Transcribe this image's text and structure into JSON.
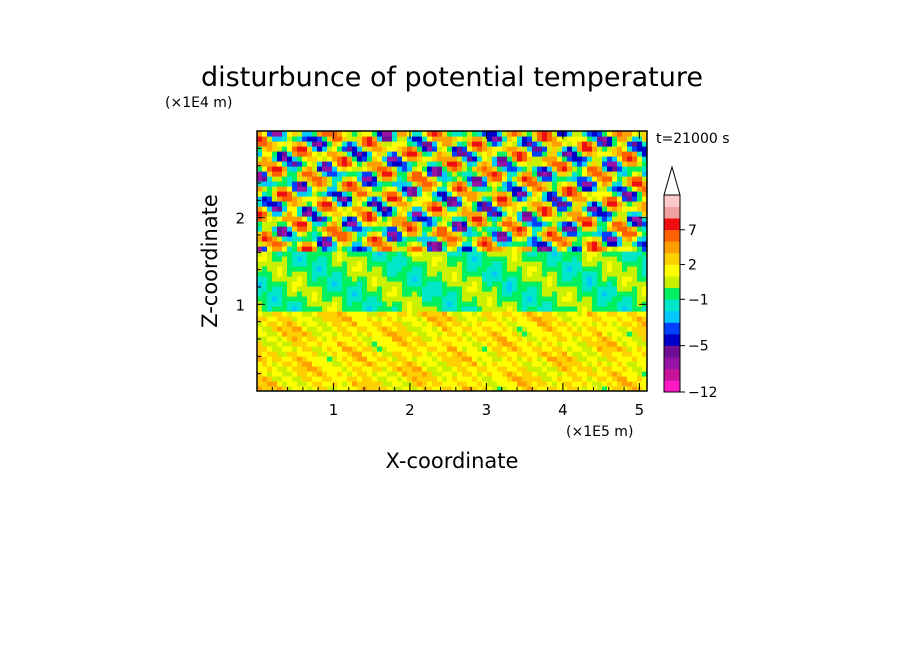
{
  "chart_data": {
    "type": "heatmap",
    "title": "disturbunce of potential temperature",
    "xlabel": "X-coordinate",
    "ylabel": "Z-coordinate",
    "x_unit": "(×1E5 m)",
    "y_unit": "(×1E4 m)",
    "time_label": "t=21000 s",
    "xlim": [
      0,
      5.1
    ],
    "ylim": [
      0,
      3.0
    ],
    "x_ticks": [
      "1",
      "2",
      "3",
      "4",
      "5"
    ],
    "x_tick_values": [
      1,
      2,
      3,
      4,
      5
    ],
    "y_ticks": [
      "1",
      "2"
    ],
    "y_tick_values": [
      1,
      2
    ],
    "colorbar": {
      "levels_bottom_to_top": [
        -12,
        -10,
        -8,
        -6,
        -5,
        -4,
        -3,
        -2,
        -1,
        0,
        1,
        2,
        3,
        5,
        7,
        9,
        11
      ],
      "colors_bottom_to_top": [
        "#ff19c8",
        "#c8139b",
        "#9613a5",
        "#6e0f96",
        "#0000c8",
        "#0040ff",
        "#00c8ff",
        "#00e6c8",
        "#00f060",
        "#c8f000",
        "#ffff00",
        "#ffd000",
        "#ffa000",
        "#ff6000",
        "#ee1010",
        "#f0a0a0",
        "#ffc8c8"
      ],
      "tick_labels": [
        "7",
        "2",
        "−1",
        "−5",
        "−12"
      ],
      "tick_levels": [
        7,
        2,
        -1,
        -5,
        -12
      ],
      "extend": "max"
    },
    "field_description": [
      {
        "z_range": [
          0,
          0.9
        ],
        "dominant_values": [
          1,
          3
        ]
      },
      {
        "z_range": [
          0.9,
          1.6
        ],
        "dominant_values": [
          -1,
          0
        ]
      },
      {
        "z_range": [
          1.6,
          3.0
        ],
        "dominant_values": [
          -6,
          9
        ]
      }
    ]
  }
}
